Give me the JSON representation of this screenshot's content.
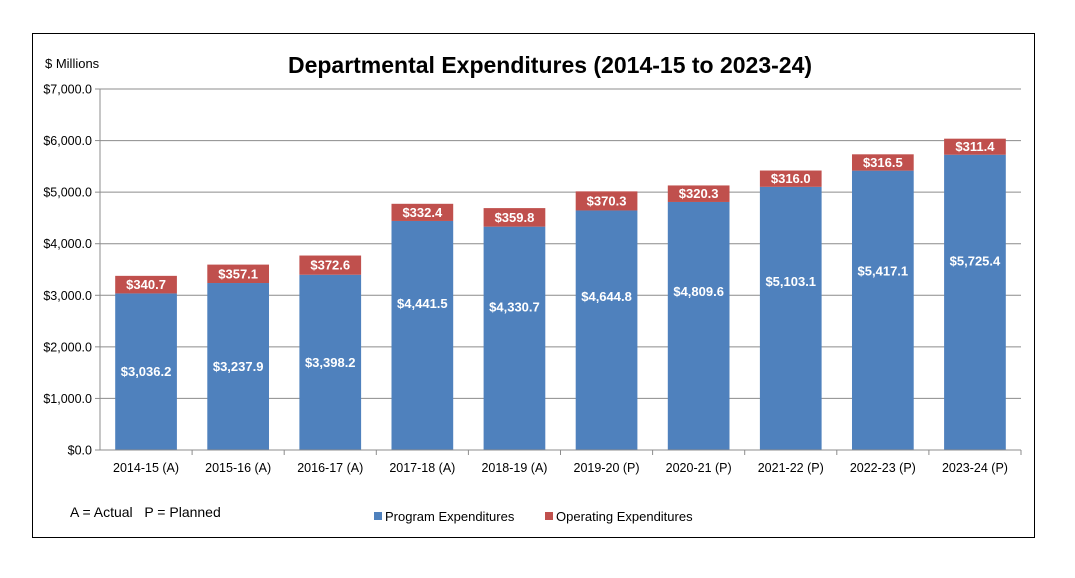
{
  "chart_data": {
    "type": "bar",
    "stacked": true,
    "title": "Departmental Expenditures (2014-15 to 2023-24)",
    "ylabel": "$ Millions",
    "xlabel": "",
    "ylim": [
      0,
      7000
    ],
    "yticks": [
      0,
      1000,
      2000,
      3000,
      4000,
      5000,
      6000,
      7000
    ],
    "ytick_labels": [
      "$0.0",
      "$1,000.0",
      "$2,000.0",
      "$3,000.0",
      "$4,000.0",
      "$5,000.0",
      "$6,000.0",
      "$7,000.0"
    ],
    "grid": true,
    "legend_position": "bottom",
    "categories": [
      "2014-15 (A)",
      "2015-16 (A)",
      "2016-17 (A)",
      "2017-18 (A)",
      "2018-19 (A)",
      "2019-20 (P)",
      "2020-21 (P)",
      "2021-22 (P)",
      "2022-23 (P)",
      "2023-24 (P)"
    ],
    "series": [
      {
        "name": "Program Expenditures",
        "color": "#4F81BD",
        "values": [
          3036.2,
          3237.9,
          3398.2,
          4441.5,
          4330.7,
          4644.8,
          4809.6,
          5103.1,
          5417.1,
          5725.4
        ],
        "labels": [
          "$3,036.2",
          "$3,237.9",
          "$3,398.2",
          "$4,441.5",
          "$4,330.7",
          "$4,644.8",
          "$4,809.6",
          "$5,103.1",
          "$5,417.1",
          "$5,725.4"
        ]
      },
      {
        "name": "Operating Expenditures",
        "color": "#C0504D",
        "values": [
          340.7,
          357.1,
          372.6,
          332.4,
          359.8,
          370.3,
          320.3,
          316.0,
          316.5,
          311.4
        ],
        "labels": [
          "$340.7",
          "$357.1",
          "$372.6",
          "$332.4",
          "$359.8",
          "$370.3",
          "$320.3",
          "$316.0",
          "$316.5",
          "$311.4"
        ]
      }
    ],
    "note": "A = Actual   P = Planned"
  }
}
